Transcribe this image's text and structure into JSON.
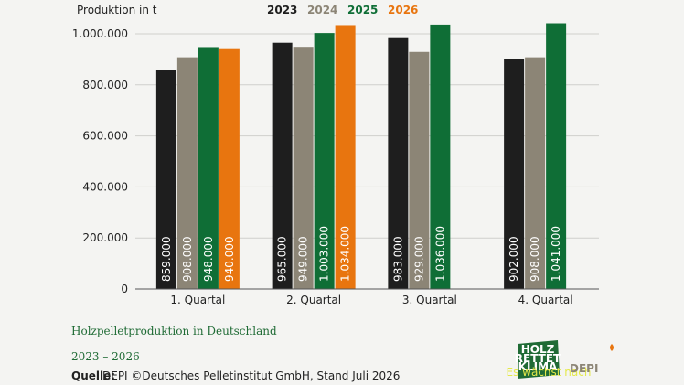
{
  "chart_data": {
    "type": "bar",
    "y_label": "Produktion in t",
    "title": "Holzpelletproduktion in Deutschland",
    "subtitle": "2023 – 2026",
    "source_label": "Quelle:",
    "source": "DEPI ©Deutsches Pelletinstitut GmbH, Stand Juli 2026",
    "categories": [
      "1. Quartal",
      "2. Quartal",
      "3. Quartal",
      "4. Quartal"
    ],
    "series": [
      {
        "name": "2023",
        "color": "#1e1e1e",
        "values": [
          859000,
          965000,
          983000,
          902000
        ],
        "value_labels": [
          "859.000",
          "965.000",
          "983.000",
          "902.000"
        ]
      },
      {
        "name": "2024",
        "color": "#8c8576",
        "values": [
          908000,
          949000,
          929000,
          908000
        ],
        "value_labels": [
          "908.000",
          "949.000",
          "929.000",
          "908.000"
        ]
      },
      {
        "name": "2025",
        "color": "#0f6e36",
        "values": [
          948000,
          1003000,
          1036000,
          1041000
        ],
        "value_labels": [
          "948.000",
          "1.003.000",
          "1.036.000",
          "1.041.000"
        ]
      },
      {
        "name": "2026",
        "color": "#e8750f",
        "values": [
          940000,
          1034000,
          null,
          null
        ],
        "value_labels": [
          "940.000",
          "1.034.000",
          null,
          null
        ]
      }
    ],
    "ylim": [
      0,
      1050000
    ],
    "yticks": [
      0,
      {
        "value": 200000,
        "label": "200.000"
      },
      {
        "value": 400000,
        "label": "400.000"
      },
      {
        "value": 600000,
        "label": "600.000"
      },
      {
        "value": 800000,
        "label": "800.000"
      },
      {
        "value": 1000000,
        "label": "1.000.000"
      }
    ],
    "grid": true
  },
  "logos": {
    "badge": [
      "HOLZ",
      "RETTET",
      "KLIMA"
    ],
    "badge_tag": "Es wächst nach",
    "brand": "DEPI"
  }
}
